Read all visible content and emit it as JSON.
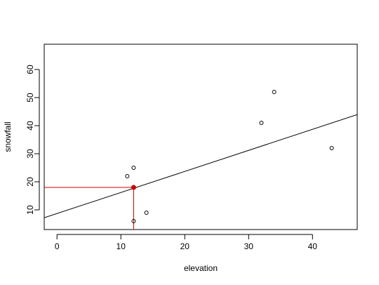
{
  "chart_data": {
    "type": "scatter",
    "title": "",
    "xlabel": "elevation",
    "ylabel": "snowfall",
    "xlim": [
      -2,
      47
    ],
    "ylim": [
      3,
      69
    ],
    "xticks": [
      0,
      10,
      20,
      30,
      40
    ],
    "yticks": [
      10,
      20,
      30,
      40,
      50,
      60
    ],
    "grid": false,
    "series": [
      {
        "type": "scatter",
        "marker": "open-circle",
        "color": "#000000",
        "points": [
          {
            "x": 11,
            "y": 22
          },
          {
            "x": 12,
            "y": 25
          },
          {
            "x": 12,
            "y": 6
          },
          {
            "x": 14,
            "y": 9
          },
          {
            "x": 32,
            "y": 41
          },
          {
            "x": 34,
            "y": 52
          },
          {
            "x": 43,
            "y": 32
          }
        ]
      }
    ],
    "fit_line": {
      "color": "#000000",
      "intercept": 8.7,
      "slope": 0.75
    },
    "highlight": {
      "color": "#cc0000",
      "x": 12,
      "y": 18
    }
  }
}
